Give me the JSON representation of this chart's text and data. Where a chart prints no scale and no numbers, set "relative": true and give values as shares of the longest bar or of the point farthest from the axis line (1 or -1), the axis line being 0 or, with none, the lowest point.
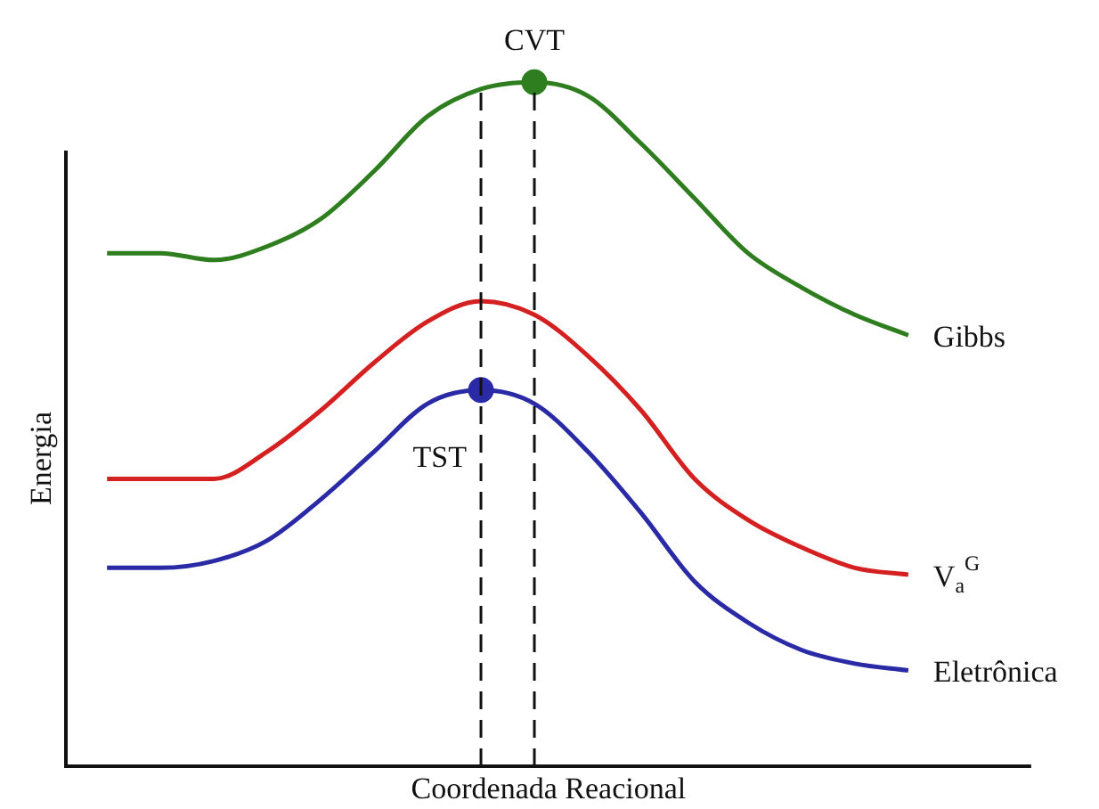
{
  "chart_data": {
    "type": "line",
    "relative": true,
    "xlabel": "Coordenada Reacional",
    "ylabel": "Energia",
    "annotations": [
      "TST",
      "CVT"
    ],
    "grid": false,
    "marker": "none",
    "line_style": "solid",
    "categories": [
      null,
      null,
      null,
      null,
      null,
      null,
      null,
      null,
      null,
      null,
      null,
      null,
      null,
      null,
      null,
      null
    ],
    "series": [
      {
        "name": "Gibbs",
        "color": "#2e7d1e",
        "values": [
          0.75,
          0.75,
          0.74,
          0.76,
          0.8,
          0.87,
          0.95,
          0.99,
          1.0,
          0.98,
          0.91,
          0.83,
          0.75,
          0.7,
          0.66,
          0.63
        ]
      },
      {
        "name": "V$_{a}$$^{G}$",
        "color": "#d42020",
        "values": [
          0.42,
          0.42,
          0.42,
          0.46,
          0.52,
          0.59,
          0.65,
          0.68,
          0.66,
          0.6,
          0.52,
          0.42,
          0.36,
          0.32,
          0.29,
          0.28
        ]
      },
      {
        "name": "Eletrônica",
        "color": "#2a2aa6",
        "values": [
          0.29,
          0.29,
          0.3,
          0.33,
          0.39,
          0.46,
          0.53,
          0.55,
          0.53,
          0.46,
          0.37,
          0.27,
          0.21,
          0.17,
          0.15,
          0.14
        ]
      }
    ]
  }
}
